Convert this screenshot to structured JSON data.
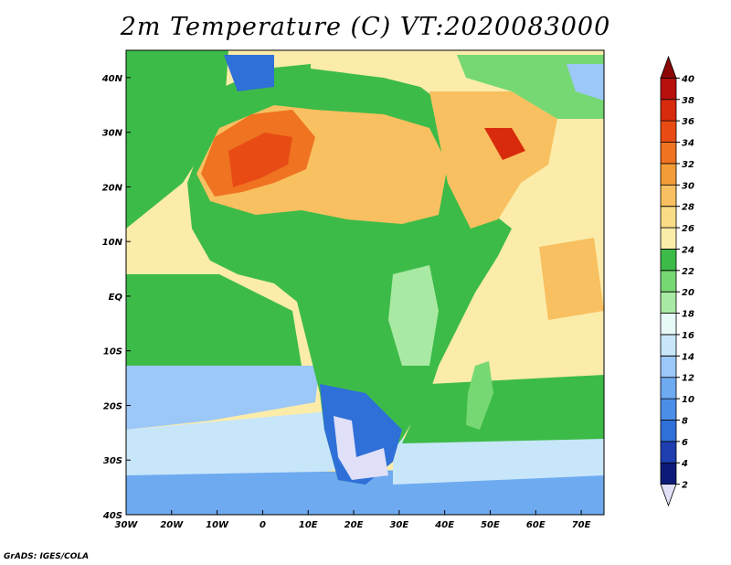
{
  "title": "2m Temperature (C) VT:2020083000",
  "credit": "GrADS: IGES/COLA",
  "map": {
    "lon_range": [
      -30,
      75
    ],
    "lat_range": [
      -40,
      45
    ],
    "lat_ticks": [
      {
        "v": 40,
        "label": "40N"
      },
      {
        "v": 30,
        "label": "30N"
      },
      {
        "v": 20,
        "label": "20N"
      },
      {
        "v": 10,
        "label": "10N"
      },
      {
        "v": 0,
        "label": "EQ"
      },
      {
        "v": -10,
        "label": "10S"
      },
      {
        "v": -20,
        "label": "20S"
      },
      {
        "v": -30,
        "label": "30S"
      },
      {
        "v": -40,
        "label": "40S"
      }
    ],
    "lon_ticks": [
      {
        "v": -30,
        "label": "30W"
      },
      {
        "v": -20,
        "label": "20W"
      },
      {
        "v": -10,
        "label": "10W"
      },
      {
        "v": 0,
        "label": "0"
      },
      {
        "v": 10,
        "label": "10E"
      },
      {
        "v": 20,
        "label": "20E"
      },
      {
        "v": 30,
        "label": "30E"
      },
      {
        "v": 40,
        "label": "40E"
      },
      {
        "v": 50,
        "label": "50E"
      },
      {
        "v": 60,
        "label": "60E"
      },
      {
        "v": 70,
        "label": "70E"
      }
    ],
    "ocean_color": "#fbecaa",
    "land_color": "#3dbb48"
  },
  "colorbar": {
    "levels": [
      "2",
      "4",
      "6",
      "8",
      "10",
      "12",
      "14",
      "16",
      "18",
      "20",
      "22",
      "24",
      "26",
      "28",
      "30",
      "32",
      "34",
      "36",
      "38",
      "40"
    ],
    "colors": [
      "#e0e0f8",
      "#0d1a78",
      "#1f3fb0",
      "#2f6fd8",
      "#4a8ee8",
      "#6eaaf0",
      "#9cc8f8",
      "#c8e6fa",
      "#e8faf8",
      "#a8eaa4",
      "#76d872",
      "#3dbb48",
      "#fbecaa",
      "#fadc86",
      "#f8c060",
      "#f49c38",
      "#ef7320",
      "#e84c14",
      "#d82a0c",
      "#b8100c",
      "#8c0808"
    ]
  }
}
